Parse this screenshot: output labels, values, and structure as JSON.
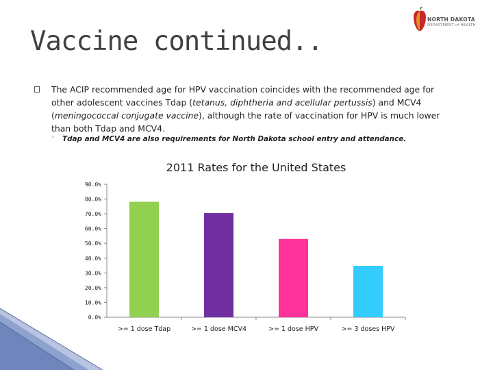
{
  "slide": {
    "title": "Vaccine continued..",
    "bullet_parts": [
      "The ACIP recommended age for HPV vaccination coincides with the recommended age for other adolescent vaccines Tdap (",
      "tetanus, diphtheria and acellular pertussis",
      ") and MCV4 (",
      "meningococcal conjugate vaccine",
      "), although the rate of vaccination for HPV is much lower than both Tdap and MCV4."
    ],
    "sub_bullet_marker": "◦",
    "sub_bullet": "Tdap and MCV4 are also requirements for North Dakota school entry and attendance."
  },
  "logo": {
    "line1": "NORTH DAKOTA",
    "line2": "DEPARTMENT of HEALTH"
  },
  "colors": {
    "bars": [
      "#92d050",
      "#7030a0",
      "#ff3399",
      "#33ccff"
    ],
    "axis": "#888888"
  },
  "chart_data": {
    "type": "bar",
    "title": "2011 Rates for the United States",
    "categories": [
      ">= 1 dose Tdap",
      ">= 1 dose MCV4",
      ">= 1 dose HPV",
      ">= 3 doses HPV"
    ],
    "values": [
      78.2,
      70.5,
      53.0,
      34.8
    ],
    "ylim": [
      0,
      90
    ],
    "yticks": [
      "0.0%",
      "10.0%",
      "20.0%",
      "30.0%",
      "40.0%",
      "50.0%",
      "60.0%",
      "70.0%",
      "80.0%",
      "90.0%"
    ],
    "grid": false,
    "legend": "none"
  }
}
